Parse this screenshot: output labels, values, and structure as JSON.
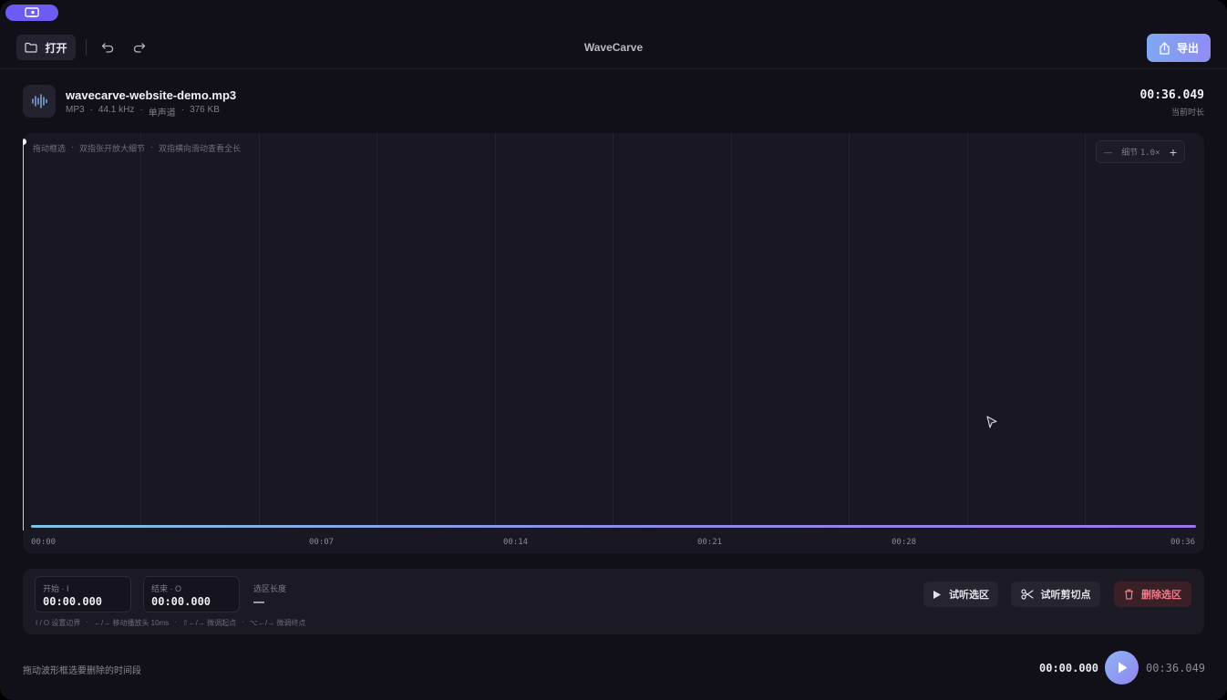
{
  "app": {
    "title": "WaveCarve"
  },
  "toolbar": {
    "open_label": "打开",
    "export_label": "导出",
    "icons": {
      "open": "folder-icon",
      "undo": "undo-icon",
      "redo": "redo-icon",
      "export": "share-icon"
    }
  },
  "file": {
    "name": "wavecarve-website-demo.mp3",
    "format": "MP3",
    "sample_rate": "44.1 kHz",
    "channels": "单声道",
    "size": "376 KB",
    "separator": "·",
    "duration": "00:36.049",
    "duration_label": "当前时长"
  },
  "waveform": {
    "hints": [
      "拖动框选",
      "双指张开放大细节",
      "双指横向滑动查看全长"
    ],
    "hint_separator": "·",
    "zoom": {
      "minus": "—",
      "label": "细节",
      "level": "1.0×",
      "plus": "+"
    },
    "ticks": [
      "00:00",
      "00:07",
      "00:14",
      "00:21",
      "00:28",
      "00:36"
    ],
    "playhead_fraction": 0,
    "colors": {
      "start": "#74c0dc",
      "mid": "#8296e6",
      "end": "#9a6fe6"
    }
  },
  "selection": {
    "start_label": "开始 · I",
    "start_value": "00:00.000",
    "end_label": "结束 · O",
    "end_value": "00:00.000",
    "length_label": "选区长度",
    "length_value": "—",
    "keyboard_hints": [
      "I / O 设置边界",
      "←/→ 移动播放头 10ms",
      "⇧←/→ 微调起点",
      "⌥←/→ 微调终点"
    ],
    "hint_separator": "·",
    "preview_label": "试听选区",
    "preview_cut_label": "试听剪切点",
    "delete_label": "删除选区"
  },
  "transport": {
    "hint": "拖动波形框选要删除的时间段",
    "current_time": "00:00.000",
    "total_time": "00:36.049"
  }
}
